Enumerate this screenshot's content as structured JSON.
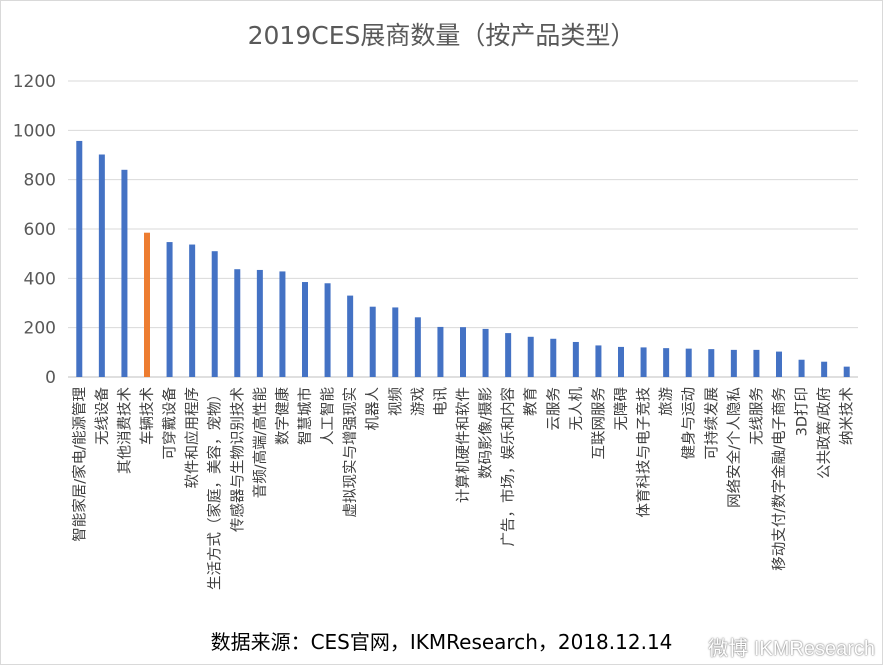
{
  "chart_data": {
    "type": "bar",
    "title": "2019CES展商数量（按产品类型）",
    "ylim": [
      0,
      1200
    ],
    "yticks": [
      0,
      200,
      400,
      600,
      800,
      1000,
      1200
    ],
    "grid": true,
    "legend": "none",
    "colors": {
      "default": "#4472C4",
      "highlight": "#ED7D31",
      "grid": "#d9d9d9"
    },
    "highlight_category": "车辆技术",
    "categories": [
      "智能家居/家电/能源管理",
      "无线设备",
      "其他消费技术",
      "车辆技术",
      "可穿戴设备",
      "软件和应用程序",
      "生活方式（家庭，美容，宠物）",
      "传感器与生物识别技术",
      "音频/高端/高性能",
      "数字健康",
      "智慧城市",
      "人工智能",
      "虚拟现实与增强现实",
      "机器人",
      "视频",
      "游戏",
      "电讯",
      "计算机硬件和软件",
      "数码影像/摄影",
      "广告，市场，娱乐和内容",
      "教育",
      "云服务",
      "无人机",
      "互联网服务",
      "无障碍",
      "体育科技与电子竞技",
      "旅游",
      "健身与运动",
      "可持续发展",
      "网络安全/个人隐私",
      "无线服务",
      "移动支付/数字金融/电子商务",
      "3D打印",
      "公共政策/政府",
      "纳米技术"
    ],
    "values": [
      957,
      902,
      840,
      585,
      547,
      537,
      510,
      437,
      434,
      428,
      385,
      380,
      330,
      285,
      282,
      242,
      203,
      202,
      195,
      178,
      163,
      155,
      142,
      128,
      122,
      120,
      117,
      115,
      113,
      110,
      110,
      103,
      70,
      62,
      42
    ]
  },
  "source_note": "数据来源：CES官网，IKMResearch，2018.12.14",
  "watermark": "微博 IKMResearch"
}
